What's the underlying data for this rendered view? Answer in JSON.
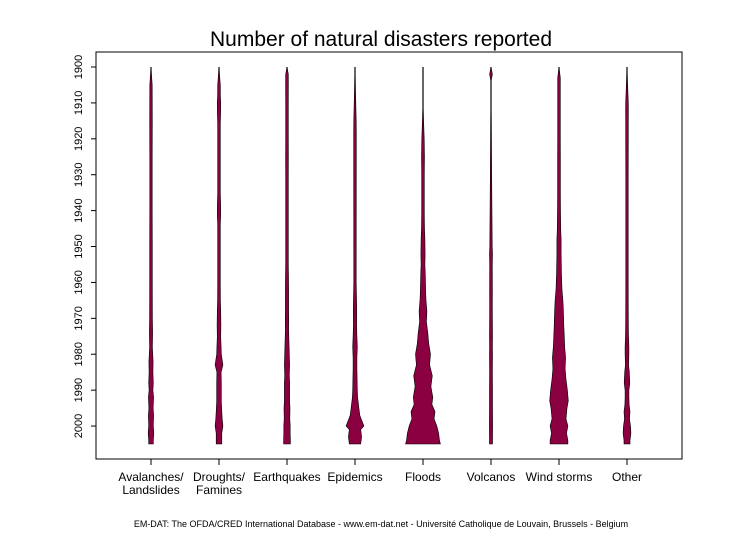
{
  "chart_data": {
    "type": "violin",
    "title": "Number of natural disasters reported",
    "source": "EM-DAT: The OFDA/CRED International Database - www.em-dat.net - Université Catholique  de Louvain, Brussels - Belgium",
    "y_axis": {
      "label": "",
      "range": [
        1900,
        2005
      ],
      "reversed": true,
      "ticks": [
        1900,
        1910,
        1920,
        1930,
        1940,
        1950,
        1960,
        1970,
        1980,
        1990,
        2000
      ]
    },
    "categories": [
      {
        "label_lines": [
          "Avalanches/",
          "Landslides"
        ]
      },
      {
        "label_lines": [
          "Droughts/",
          "Famines"
        ]
      },
      {
        "label_lines": [
          "Earthquakes"
        ]
      },
      {
        "label_lines": [
          "Epidemics"
        ]
      },
      {
        "label_lines": [
          "Floods"
        ]
      },
      {
        "label_lines": [
          "Volcanos"
        ]
      },
      {
        "label_lines": [
          "Wind storms"
        ]
      },
      {
        "label_lines": [
          "Other"
        ]
      }
    ],
    "approximate_counts_per_year": [
      [
        [
          1900,
          0
        ],
        [
          1905,
          0.1
        ],
        [
          1915,
          0.2
        ],
        [
          1925,
          0.1
        ],
        [
          1940,
          0.1
        ],
        [
          1950,
          0.2
        ],
        [
          1960,
          0.2
        ],
        [
          1970,
          0.4
        ],
        [
          1974,
          0.8
        ],
        [
          1978,
          0.4
        ],
        [
          1980,
          1.2
        ],
        [
          1982,
          2
        ],
        [
          1985,
          1.5
        ],
        [
          1988,
          2.5
        ],
        [
          1990,
          1.5
        ],
        [
          1992,
          3
        ],
        [
          1995,
          2
        ],
        [
          1997,
          3
        ],
        [
          2000,
          2.5
        ],
        [
          2002,
          3.5
        ],
        [
          2004,
          2.5
        ],
        [
          2005,
          2.5
        ]
      ],
      [
        [
          1900,
          0
        ],
        [
          1905,
          0.2
        ],
        [
          1908,
          0.5
        ],
        [
          1910,
          1.2
        ],
        [
          1913,
          0.8
        ],
        [
          1916,
          0.3
        ],
        [
          1920,
          0.2
        ],
        [
          1925,
          0.3
        ],
        [
          1930,
          0.3
        ],
        [
          1935,
          0.2
        ],
        [
          1938,
          0.8
        ],
        [
          1941,
          1.2
        ],
        [
          1944,
          0.3
        ],
        [
          1950,
          0.3
        ],
        [
          1955,
          0.3
        ],
        [
          1960,
          0.3
        ],
        [
          1965,
          0.5
        ],
        [
          1968,
          1.2
        ],
        [
          1972,
          1.5
        ],
        [
          1975,
          1.2
        ],
        [
          1978,
          2
        ],
        [
          1980,
          2.5
        ],
        [
          1983,
          6
        ],
        [
          1985,
          2
        ],
        [
          1988,
          2.5
        ],
        [
          1990,
          2.5
        ],
        [
          1993,
          2.5
        ],
        [
          1996,
          3.5
        ],
        [
          1998,
          4.5
        ],
        [
          2000,
          6
        ],
        [
          2002,
          3.5
        ],
        [
          2004,
          3.5
        ],
        [
          2005,
          3.5
        ]
      ],
      [
        [
          1900,
          0
        ],
        [
          1902,
          0.2
        ],
        [
          1905,
          0.5
        ],
        [
          1910,
          0.3
        ],
        [
          1915,
          0.2
        ],
        [
          1920,
          0.2
        ],
        [
          1925,
          0.4
        ],
        [
          1930,
          0.3
        ],
        [
          1935,
          0.3
        ],
        [
          1940,
          0.2
        ],
        [
          1945,
          0.3
        ],
        [
          1950,
          0.3
        ],
        [
          1955,
          0.3
        ],
        [
          1958,
          0.6
        ],
        [
          1962,
          0.8
        ],
        [
          1965,
          1
        ],
        [
          1968,
          1
        ],
        [
          1970,
          1.2
        ],
        [
          1973,
          1
        ],
        [
          1976,
          1.5
        ],
        [
          1978,
          2
        ],
        [
          1980,
          2.5
        ],
        [
          1983,
          3
        ],
        [
          1986,
          2.5
        ],
        [
          1988,
          3
        ],
        [
          1990,
          3
        ],
        [
          1993,
          3
        ],
        [
          1995,
          4
        ],
        [
          1998,
          3.5
        ],
        [
          2000,
          4.5
        ],
        [
          2002,
          4.5
        ],
        [
          2004,
          5
        ],
        [
          2005,
          5
        ]
      ],
      [
        [
          1900,
          0
        ],
        [
          1915,
          0.1
        ],
        [
          1918,
          0.3
        ],
        [
          1920,
          0.2
        ],
        [
          1923,
          0.2
        ],
        [
          1960,
          0.1
        ],
        [
          1964,
          0.6
        ],
        [
          1968,
          1.2
        ],
        [
          1972,
          1
        ],
        [
          1975,
          1.5
        ],
        [
          1978,
          2.5
        ],
        [
          1981,
          1.5
        ],
        [
          1984,
          1.5
        ],
        [
          1987,
          2
        ],
        [
          1990,
          2.5
        ],
        [
          1992,
          3
        ],
        [
          1995,
          6
        ],
        [
          1997,
          8
        ],
        [
          1999,
          14
        ],
        [
          2000,
          17
        ],
        [
          2001,
          10
        ],
        [
          2003,
          12
        ],
        [
          2005,
          10
        ]
      ],
      [
        [
          1900,
          0
        ],
        [
          1910,
          0
        ],
        [
          1920,
          0.1
        ],
        [
          1925,
          0.6
        ],
        [
          1930,
          0.2
        ],
        [
          1940,
          0.2
        ],
        [
          1945,
          0.6
        ],
        [
          1948,
          1.5
        ],
        [
          1952,
          2
        ],
        [
          1955,
          1.5
        ],
        [
          1958,
          2.5
        ],
        [
          1962,
          3
        ],
        [
          1965,
          4
        ],
        [
          1968,
          6
        ],
        [
          1971,
          5
        ],
        [
          1974,
          8
        ],
        [
          1977,
          10
        ],
        [
          1980,
          14
        ],
        [
          1983,
          12
        ],
        [
          1986,
          18
        ],
        [
          1989,
          15
        ],
        [
          1992,
          19
        ],
        [
          1994,
          17
        ],
        [
          1996,
          24
        ],
        [
          1998,
          22
        ],
        [
          2000,
          28
        ],
        [
          2002,
          32
        ],
        [
          2004,
          34
        ],
        [
          2005,
          36
        ]
      ],
      [
        [
          1900,
          0
        ],
        [
          1902,
          0.4
        ],
        [
          1904,
          0
        ],
        [
          1950,
          0.1
        ],
        [
          1952,
          0.6
        ],
        [
          1955,
          0.2
        ],
        [
          1963,
          0.5
        ],
        [
          1966,
          0.2
        ],
        [
          1975,
          0.6
        ],
        [
          1978,
          0.5
        ],
        [
          1980,
          0.6
        ],
        [
          1985,
          0.4
        ],
        [
          1990,
          0.6
        ],
        [
          1995,
          0.6
        ],
        [
          2000,
          0.8
        ],
        [
          2004,
          0.6
        ],
        [
          2005,
          0.6
        ]
      ],
      [
        [
          1900,
          0
        ],
        [
          1903,
          0.3
        ],
        [
          1910,
          0.2
        ],
        [
          1920,
          0.3
        ],
        [
          1925,
          0.4
        ],
        [
          1930,
          0.4
        ],
        [
          1935,
          0.4
        ],
        [
          1940,
          0.6
        ],
        [
          1945,
          1.2
        ],
        [
          1948,
          2
        ],
        [
          1952,
          2
        ],
        [
          1955,
          2.5
        ],
        [
          1958,
          3
        ],
        [
          1962,
          4
        ],
        [
          1965,
          6
        ],
        [
          1968,
          7
        ],
        [
          1972,
          8
        ],
        [
          1975,
          9
        ],
        [
          1978,
          10
        ],
        [
          1981,
          12
        ],
        [
          1984,
          11
        ],
        [
          1987,
          13
        ],
        [
          1990,
          16
        ],
        [
          1993,
          18
        ],
        [
          1995,
          15
        ],
        [
          1998,
          13
        ],
        [
          2000,
          17
        ],
        [
          2002,
          14
        ],
        [
          2004,
          17
        ],
        [
          2005,
          17
        ]
      ],
      [
        [
          1900,
          0
        ],
        [
          1910,
          0.2
        ],
        [
          1912,
          0.4
        ],
        [
          1915,
          0.2
        ],
        [
          1920,
          0.2
        ],
        [
          1930,
          0.1
        ],
        [
          1940,
          0.1
        ],
        [
          1950,
          0.1
        ],
        [
          1960,
          0.1
        ],
        [
          1970,
          0.2
        ],
        [
          1975,
          0.6
        ],
        [
          1978,
          1.5
        ],
        [
          1980,
          1.5
        ],
        [
          1983,
          1
        ],
        [
          1985,
          2.5
        ],
        [
          1988,
          3.5
        ],
        [
          1990,
          1.5
        ],
        [
          1992,
          1.5
        ],
        [
          1994,
          2
        ],
        [
          1996,
          4
        ],
        [
          1998,
          3
        ],
        [
          2000,
          5
        ],
        [
          2002,
          6
        ],
        [
          2004,
          4
        ],
        [
          2005,
          4
        ]
      ]
    ],
    "fill_color": "#8B0040",
    "stroke_color": "#000000"
  }
}
